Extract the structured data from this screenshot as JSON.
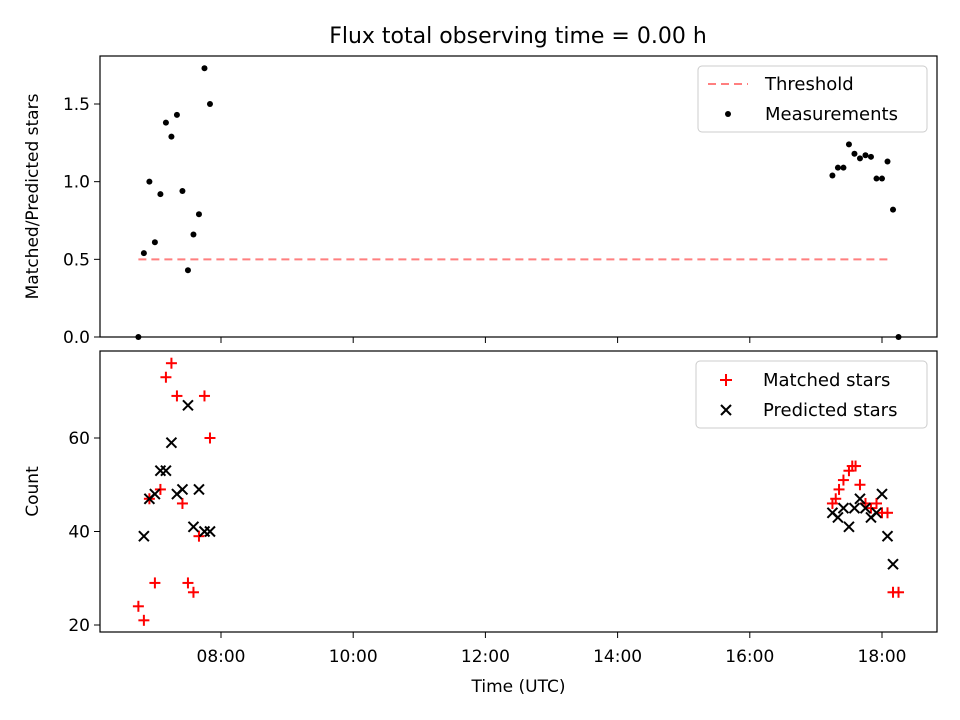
{
  "title": "Flux total observing time = 0.00 h",
  "chart_data": [
    {
      "type": "scatter",
      "ylabel": "Matched/Predicted stars",
      "xlabel": "",
      "ylim": [
        0.0,
        1.8
      ],
      "yticks": [
        0.0,
        0.5,
        1.0,
        1.5
      ],
      "ytick_labels": [
        "0.0",
        "0.5",
        "1.0",
        "1.5"
      ],
      "legend": [
        "Threshold",
        "Measurements"
      ],
      "legend_position": "top-right",
      "colors": {
        "threshold": "#ff7f7f",
        "measurements": "#000000"
      },
      "threshold": {
        "y": 0.5,
        "x_start": "06:45",
        "x_end": "18:05"
      },
      "x": [
        "06:45",
        "06:50",
        "06:55",
        "07:00",
        "07:05",
        "07:10",
        "07:15",
        "07:20",
        "07:25",
        "07:30",
        "07:35",
        "07:40",
        "07:45",
        "07:50",
        "07:55",
        "17:15",
        "17:20",
        "17:25",
        "17:30",
        "17:35",
        "17:40",
        "17:45",
        "17:50",
        "17:55",
        "18:00",
        "18:05",
        "18:10",
        "18:15"
      ],
      "y": [
        0.0,
        0.54,
        1.0,
        0.61,
        0.92,
        1.38,
        1.29,
        1.43,
        0.94,
        0.43,
        0.66,
        0.79,
        1.73,
        1.5,
        null,
        1.04,
        1.09,
        1.09,
        1.24,
        1.18,
        1.15,
        1.17,
        1.16,
        1.02,
        1.02,
        1.13,
        0.82,
        0.0
      ]
    },
    {
      "type": "scatter",
      "ylabel": "Count",
      "xlabel": "Time (UTC)",
      "ylim": [
        18,
        78
      ],
      "yticks": [
        20,
        40,
        60
      ],
      "ytick_labels": [
        "20",
        "40",
        "60"
      ],
      "xticks": [
        "08:00",
        "10:00",
        "12:00",
        "14:00",
        "16:00",
        "18:00"
      ],
      "legend": [
        "Matched stars",
        "Predicted stars"
      ],
      "legend_position": "top-right",
      "series": [
        {
          "name": "Matched stars",
          "marker": "+",
          "color": "#ff0000",
          "x": [
            "06:45",
            "06:50",
            "06:55",
            "07:00",
            "07:05",
            "07:10",
            "07:15",
            "07:20",
            "07:25",
            "07:30",
            "07:35",
            "07:40",
            "07:45",
            "07:50",
            "17:15",
            "17:18",
            "17:21",
            "17:25",
            "17:30",
            "17:33",
            "17:36",
            "17:40",
            "17:45",
            "17:50",
            "17:55",
            "18:00",
            "18:05",
            "18:10",
            "18:15"
          ],
          "y": [
            24,
            21,
            47,
            29,
            49,
            73,
            76,
            69,
            46,
            29,
            27,
            39,
            69,
            60,
            46,
            47,
            49,
            51,
            53,
            54,
            54,
            50,
            46,
            45,
            46,
            44,
            44,
            27,
            27
          ]
        },
        {
          "name": "Predicted stars",
          "marker": "x",
          "color": "#000000",
          "x": [
            "06:50",
            "06:55",
            "07:00",
            "07:05",
            "07:10",
            "07:15",
            "07:20",
            "07:25",
            "07:30",
            "07:35",
            "07:40",
            "07:45",
            "07:50",
            "17:15",
            "17:20",
            "17:25",
            "17:30",
            "17:35",
            "17:40",
            "17:45",
            "17:50",
            "17:55",
            "18:00",
            "18:05",
            "18:10"
          ],
          "y": [
            39,
            47,
            48,
            53,
            53,
            59,
            48,
            49,
            67,
            41,
            49,
            40,
            40,
            44,
            43,
            45,
            41,
            45,
            47,
            45,
            43,
            44,
            48,
            39,
            33
          ]
        }
      ]
    }
  ]
}
